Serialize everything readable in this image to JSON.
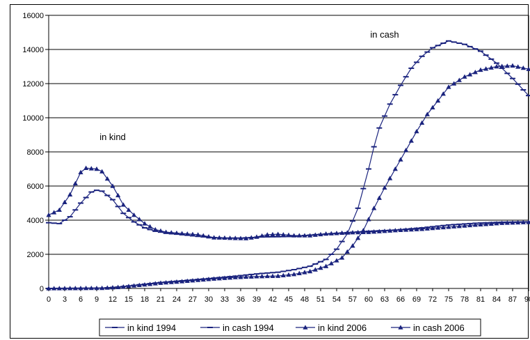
{
  "chart_data": {
    "type": "line",
    "x_ticks": [
      "0",
      "3",
      "6",
      "9",
      "12",
      "15",
      "18",
      "21",
      "24",
      "27",
      "30",
      "33",
      "36",
      "39",
      "42",
      "45",
      "48",
      "51",
      "54",
      "57",
      "60",
      "63",
      "66",
      "69",
      "72",
      "75",
      "78",
      "81",
      "84",
      "87",
      "90"
    ],
    "xlim": [
      0,
      90
    ],
    "ylim": [
      0,
      16000
    ],
    "y_ticks": [
      "0",
      "2000",
      "4000",
      "6000",
      "8000",
      "10000",
      "12000",
      "14000",
      "16000"
    ],
    "grid": "horizontal",
    "legend_position": "bottom",
    "annotations": [
      {
        "text": "in kind",
        "x": 12,
        "y": 8700
      },
      {
        "text": "in cash",
        "x": 63,
        "y": 14700
      }
    ],
    "series": [
      {
        "name": "in kind 1994",
        "marker": "dash",
        "points": [
          [
            0,
            3850
          ],
          [
            2,
            3800
          ],
          [
            4,
            4200
          ],
          [
            6,
            5000
          ],
          [
            8,
            5650
          ],
          [
            9,
            5750
          ],
          [
            10,
            5700
          ],
          [
            12,
            5200
          ],
          [
            14,
            4400
          ],
          [
            16,
            3900
          ],
          [
            18,
            3550
          ],
          [
            20,
            3350
          ],
          [
            22,
            3250
          ],
          [
            25,
            3150
          ],
          [
            28,
            3050
          ],
          [
            31,
            2980
          ],
          [
            33,
            2950
          ],
          [
            36,
            2950
          ],
          [
            38,
            2980
          ],
          [
            40,
            3020
          ],
          [
            43,
            3030
          ],
          [
            46,
            3050
          ],
          [
            50,
            3150
          ],
          [
            55,
            3250
          ],
          [
            60,
            3350
          ],
          [
            65,
            3420
          ],
          [
            70,
            3550
          ],
          [
            75,
            3720
          ],
          [
            80,
            3820
          ],
          [
            85,
            3880
          ],
          [
            90,
            3900
          ]
        ]
      },
      {
        "name": "in cash 1994",
        "marker": "dash",
        "points": [
          [
            0,
            0
          ],
          [
            10,
            20
          ],
          [
            13,
            80
          ],
          [
            15,
            150
          ],
          [
            18,
            250
          ],
          [
            21,
            350
          ],
          [
            25,
            450
          ],
          [
            30,
            580
          ],
          [
            35,
            720
          ],
          [
            38,
            820
          ],
          [
            40,
            880
          ],
          [
            43,
            950
          ],
          [
            46,
            1100
          ],
          [
            49,
            1300
          ],
          [
            52,
            1700
          ],
          [
            54,
            2300
          ],
          [
            56,
            3200
          ],
          [
            58,
            4700
          ],
          [
            60,
            7000
          ],
          [
            61,
            8300
          ],
          [
            62,
            9400
          ],
          [
            64,
            10800
          ],
          [
            66,
            11900
          ],
          [
            68,
            12900
          ],
          [
            70,
            13600
          ],
          [
            72,
            14100
          ],
          [
            75,
            14500
          ],
          [
            78,
            14300
          ],
          [
            81,
            13900
          ],
          [
            84,
            13200
          ],
          [
            87,
            12300
          ],
          [
            90,
            11300
          ]
        ]
      },
      {
        "name": "in kind 2006",
        "marker": "triangle",
        "points": [
          [
            0,
            4300
          ],
          [
            2,
            4600
          ],
          [
            4,
            5500
          ],
          [
            6,
            6800
          ],
          [
            7,
            7050
          ],
          [
            9,
            7000
          ],
          [
            10,
            6850
          ],
          [
            12,
            6000
          ],
          [
            14,
            4900
          ],
          [
            16,
            4300
          ],
          [
            18,
            3800
          ],
          [
            20,
            3450
          ],
          [
            22,
            3300
          ],
          [
            25,
            3220
          ],
          [
            28,
            3150
          ],
          [
            31,
            2980
          ],
          [
            34,
            2950
          ],
          [
            37,
            2930
          ],
          [
            39,
            3020
          ],
          [
            41,
            3150
          ],
          [
            43,
            3180
          ],
          [
            46,
            3100
          ],
          [
            49,
            3100
          ],
          [
            52,
            3200
          ],
          [
            56,
            3270
          ],
          [
            60,
            3300
          ],
          [
            65,
            3400
          ],
          [
            70,
            3480
          ],
          [
            75,
            3600
          ],
          [
            80,
            3720
          ],
          [
            85,
            3830
          ],
          [
            90,
            3880
          ]
        ]
      },
      {
        "name": "in cash 2006",
        "marker": "triangle",
        "points": [
          [
            0,
            0
          ],
          [
            10,
            20
          ],
          [
            13,
            70
          ],
          [
            15,
            130
          ],
          [
            18,
            220
          ],
          [
            21,
            320
          ],
          [
            25,
            410
          ],
          [
            30,
            540
          ],
          [
            35,
            650
          ],
          [
            39,
            700
          ],
          [
            43,
            730
          ],
          [
            46,
            830
          ],
          [
            49,
            1000
          ],
          [
            52,
            1300
          ],
          [
            55,
            1800
          ],
          [
            57,
            2500
          ],
          [
            59,
            3400
          ],
          [
            61,
            4700
          ],
          [
            63,
            5900
          ],
          [
            65,
            7000
          ],
          [
            67,
            8100
          ],
          [
            69,
            9200
          ],
          [
            71,
            10200
          ],
          [
            73,
            11000
          ],
          [
            75,
            11800
          ],
          [
            78,
            12400
          ],
          [
            81,
            12800
          ],
          [
            84,
            13000
          ],
          [
            87,
            13050
          ],
          [
            90,
            12850
          ]
        ]
      }
    ]
  }
}
